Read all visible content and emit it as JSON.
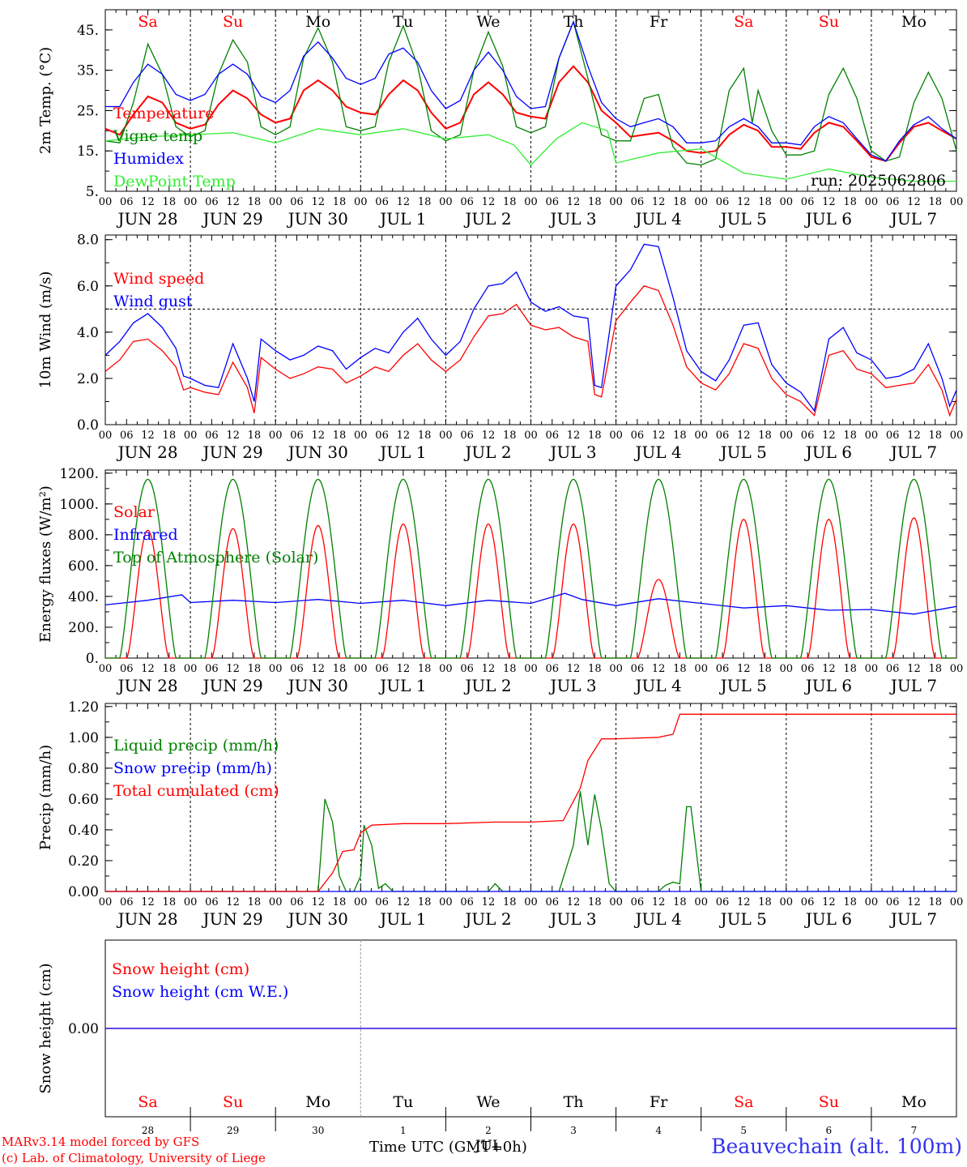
{
  "days_top": [
    "Sa",
    "Su",
    "Mo",
    "Tu",
    "We",
    "Th",
    "Fr",
    "Sa",
    "Su",
    "Mo"
  ],
  "weekend_days": [
    "Sa",
    "Su"
  ],
  "date_labels": [
    "JUN 28",
    "JUN 29",
    "JUN 30",
    "JUL  1",
    "JUL  2",
    "JUL  3",
    "JUL  4",
    "JUL  5",
    "JUL  6",
    "JUL  7"
  ],
  "hour_ticks": [
    "00",
    "06",
    "12",
    "18"
  ],
  "hour_tick_last": "00",
  "bottom_day_numbers": [
    "28",
    "29",
    "30",
    "1",
    "2",
    "3",
    "4",
    "5",
    "6",
    "7"
  ],
  "bottom_month_label": "JUL",
  "run_label": "run: 2025062806",
  "footer": {
    "model": "MARv3.14 model forced by GFS",
    "credit": "(c) Lab. of Climatology, University of Liege",
    "xlabel": "Time UTC (GMT+0h)",
    "station": "Beauvechain (alt. 100m)"
  },
  "colors": {
    "red": "#ff0000",
    "green": "#008000",
    "blue": "#0000ff",
    "lightgreen": "#33ee33",
    "grey": "#555555"
  },
  "chart_data": [
    {
      "type": "line",
      "ylabel": "2m Temp. (°C)",
      "yticks": [
        "5.",
        "15.",
        "25.",
        "35.",
        "45."
      ],
      "ylim": [
        5,
        50
      ],
      "x_unit": "day index (0 = JUN 28 00 UTC)",
      "xlim": [
        0,
        10
      ],
      "series": [
        {
          "name": "Temperature",
          "color": "red",
          "x": [
            0,
            0.17,
            0.33,
            0.5,
            0.67,
            0.83,
            1,
            1.17,
            1.33,
            1.5,
            1.67,
            1.83,
            2,
            2.17,
            2.33,
            2.5,
            2.67,
            2.83,
            3,
            3.17,
            3.33,
            3.5,
            3.67,
            3.83,
            4,
            4.17,
            4.33,
            4.5,
            4.67,
            4.83,
            5,
            5.17,
            5.33,
            5.5,
            5.67,
            5.83,
            6,
            6.17,
            6.33,
            6.5,
            6.67,
            6.83,
            7,
            7.17,
            7.33,
            7.5,
            7.67,
            7.83,
            8,
            8.17,
            8.33,
            8.5,
            8.67,
            8.83,
            9,
            9.17,
            9.33,
            9.5,
            9.67,
            9.83,
            10
          ],
          "y": [
            20.5,
            19,
            24,
            28.5,
            27,
            22,
            20.5,
            21.5,
            26.5,
            30,
            28,
            24,
            22,
            23,
            30,
            32.5,
            30,
            26,
            24.5,
            24,
            29,
            32.5,
            30,
            24.5,
            20.5,
            22,
            29,
            32,
            29,
            24.5,
            23.5,
            23,
            32,
            36,
            32,
            25,
            22,
            18.5,
            19,
            19.5,
            17.5,
            15,
            14.5,
            15,
            19,
            21.5,
            20,
            16,
            16,
            15.5,
            19.5,
            22,
            21,
            17.5,
            13.5,
            12.5,
            17,
            21,
            22,
            20,
            18
          ]
        },
        {
          "name": "Vigne temp",
          "color": "green",
          "x": [
            0,
            0.17,
            0.33,
            0.5,
            0.67,
            0.83,
            1,
            1.17,
            1.33,
            1.5,
            1.67,
            1.83,
            2,
            2.17,
            2.33,
            2.5,
            2.67,
            2.83,
            3,
            3.17,
            3.33,
            3.5,
            3.67,
            3.83,
            4,
            4.17,
            4.33,
            4.5,
            4.67,
            4.83,
            5,
            5.17,
            5.33,
            5.5,
            5.67,
            5.83,
            6,
            6.17,
            6.33,
            6.5,
            6.67,
            6.83,
            7,
            7.17,
            7.33,
            7.5,
            7.6,
            7.67,
            7.83,
            8,
            8.17,
            8.33,
            8.5,
            8.67,
            8.83,
            9,
            9.17,
            9.33,
            9.5,
            9.67,
            9.83,
            10
          ],
          "y": [
            17.5,
            17,
            27,
            41.5,
            34,
            21,
            18.5,
            20,
            34,
            42.5,
            37,
            21,
            19,
            21,
            38,
            45.5,
            37,
            21,
            20,
            21,
            37,
            46,
            36,
            20,
            17.5,
            19,
            35,
            44.5,
            36,
            21,
            19.5,
            21,
            38,
            47,
            33,
            19,
            17.5,
            17.5,
            28,
            29,
            16,
            12,
            11.5,
            13,
            30,
            35.5,
            22,
            30,
            20,
            14,
            14,
            15,
            29,
            35.5,
            28,
            15,
            12.5,
            13.5,
            27,
            34.5,
            28,
            15
          ]
        },
        {
          "name": "Humidex",
          "color": "blue",
          "x": [
            0,
            0.17,
            0.33,
            0.5,
            0.67,
            0.83,
            1,
            1.17,
            1.33,
            1.5,
            1.67,
            1.83,
            2,
            2.17,
            2.33,
            2.5,
            2.67,
            2.83,
            3,
            3.17,
            3.33,
            3.5,
            3.67,
            3.83,
            4,
            4.17,
            4.33,
            4.5,
            4.67,
            4.83,
            5,
            5.17,
            5.33,
            5.5,
            5.67,
            5.83,
            6,
            6.17,
            6.33,
            6.5,
            6.67,
            6.83,
            7,
            7.17,
            7.33,
            7.5,
            7.67,
            7.83,
            8,
            8.17,
            8.33,
            8.5,
            8.67,
            8.83,
            9,
            9.17,
            9.33,
            9.5,
            9.67,
            9.83,
            10
          ],
          "y": [
            26,
            26,
            32,
            36.5,
            34,
            29,
            27.5,
            29,
            34,
            36.5,
            34,
            28.5,
            27,
            30,
            38.5,
            42,
            38,
            33,
            31.5,
            33,
            39,
            40.5,
            37,
            30,
            25.5,
            27.5,
            35,
            39.5,
            35,
            28.5,
            25.5,
            26,
            38,
            47,
            36,
            27,
            23,
            21,
            22,
            23,
            21,
            17,
            17,
            17.5,
            21,
            23,
            21,
            17,
            17,
            16.5,
            21,
            23.5,
            22,
            18,
            14,
            12.5,
            17.5,
            21.5,
            23.5,
            20.5,
            18
          ]
        },
        {
          "name": "DewPoint Temp",
          "color": "lightgreen",
          "x": [
            0,
            0.5,
            1,
            1.5,
            2,
            2.5,
            3,
            3.5,
            4,
            4.5,
            4.8,
            5,
            5.3,
            5.6,
            5.9,
            6,
            6.5,
            7,
            7.5,
            8,
            8.5,
            9,
            9.5,
            10
          ],
          "y": [
            17.5,
            18.5,
            19,
            19.5,
            17,
            20.5,
            19,
            20.5,
            18,
            19,
            16.5,
            11.5,
            18,
            22,
            20,
            12,
            14.5,
            15.5,
            9.5,
            8,
            10.5,
            8.5,
            7.5,
            7.5
          ]
        }
      ]
    },
    {
      "type": "line",
      "ylabel": "10m Wind (m/s)",
      "yticks": [
        "0.0",
        "2.0",
        "4.0",
        "6.0",
        "8.0"
      ],
      "ylim": [
        0,
        8.2
      ],
      "reference_line": 5.0,
      "xlim": [
        0,
        10
      ],
      "series": [
        {
          "name": "Wind speed",
          "color": "red",
          "x": [
            0,
            0.17,
            0.33,
            0.5,
            0.67,
            0.83,
            0.92,
            1,
            1.17,
            1.33,
            1.5,
            1.67,
            1.75,
            1.83,
            2,
            2.17,
            2.33,
            2.5,
            2.67,
            2.83,
            3,
            3.17,
            3.33,
            3.5,
            3.67,
            3.83,
            4,
            4.17,
            4.33,
            4.5,
            4.67,
            4.83,
            5,
            5.17,
            5.33,
            5.5,
            5.67,
            5.75,
            5.83,
            6,
            6.17,
            6.33,
            6.5,
            6.67,
            6.83,
            7,
            7.17,
            7.33,
            7.5,
            7.67,
            7.83,
            8,
            8.17,
            8.33,
            8.5,
            8.67,
            8.83,
            9,
            9.17,
            9.33,
            9.5,
            9.67,
            9.83,
            9.92,
            10
          ],
          "y": [
            2.3,
            2.8,
            3.6,
            3.7,
            3.2,
            2.5,
            1.5,
            1.6,
            1.4,
            1.3,
            2.7,
            1.6,
            0.5,
            2.9,
            2.4,
            2.0,
            2.2,
            2.5,
            2.4,
            1.8,
            2.1,
            2.5,
            2.3,
            3.0,
            3.5,
            2.8,
            2.3,
            2.8,
            3.8,
            4.7,
            4.8,
            5.2,
            4.3,
            4.1,
            4.2,
            3.8,
            3.6,
            1.3,
            1.2,
            4.5,
            5.3,
            6.0,
            5.8,
            4.3,
            2.5,
            1.8,
            1.5,
            2.2,
            3.5,
            3.3,
            2.0,
            1.3,
            1.0,
            0.4,
            3.0,
            3.2,
            2.4,
            2.2,
            1.6,
            1.7,
            1.8,
            2.6,
            1.5,
            0.4,
            1.1
          ]
        },
        {
          "name": "Wind gust",
          "color": "blue",
          "x": [
            0,
            0.17,
            0.33,
            0.5,
            0.67,
            0.83,
            0.92,
            1,
            1.17,
            1.33,
            1.5,
            1.67,
            1.75,
            1.83,
            2,
            2.17,
            2.33,
            2.5,
            2.67,
            2.83,
            3,
            3.17,
            3.33,
            3.5,
            3.67,
            3.83,
            4,
            4.17,
            4.33,
            4.5,
            4.67,
            4.83,
            5,
            5.17,
            5.33,
            5.5,
            5.67,
            5.75,
            5.83,
            6,
            6.17,
            6.33,
            6.5,
            6.67,
            6.83,
            7,
            7.17,
            7.33,
            7.5,
            7.67,
            7.83,
            8,
            8.17,
            8.33,
            8.5,
            8.67,
            8.83,
            9,
            9.17,
            9.33,
            9.5,
            9.67,
            9.83,
            9.92,
            10
          ],
          "y": [
            3.0,
            3.6,
            4.4,
            4.8,
            4.2,
            3.3,
            2.1,
            2.0,
            1.7,
            1.6,
            3.5,
            2.0,
            1.0,
            3.7,
            3.2,
            2.8,
            3.0,
            3.4,
            3.2,
            2.4,
            2.9,
            3.3,
            3.1,
            4.0,
            4.6,
            3.7,
            3.0,
            3.6,
            5.0,
            6.0,
            6.1,
            6.6,
            5.3,
            4.9,
            5.1,
            4.7,
            4.6,
            1.7,
            1.6,
            6.0,
            6.7,
            7.8,
            7.7,
            5.5,
            3.2,
            2.3,
            1.9,
            2.8,
            4.3,
            4.4,
            2.6,
            1.8,
            1.4,
            0.6,
            3.7,
            4.2,
            3.1,
            2.8,
            2.0,
            2.1,
            2.4,
            3.5,
            2.0,
            0.8,
            1.5
          ]
        }
      ]
    },
    {
      "type": "line",
      "ylabel": "Energy fluxes (W/m²)",
      "yticks": [
        "0.",
        "200.",
        "400.",
        "600.",
        "800.",
        "1000.",
        "1200."
      ],
      "ylim": [
        0,
        1220
      ],
      "xlim": [
        0,
        10
      ],
      "series": [
        {
          "name": "Solar",
          "color": "red",
          "diurnal_peaks": [
            830,
            840,
            860,
            870,
            870,
            870,
            510,
            900,
            900,
            910
          ]
        },
        {
          "name": "Infrared",
          "color": "blue",
          "x": [
            0,
            0.5,
            0.9,
            1,
            1.5,
            2,
            2.5,
            3,
            3.5,
            4,
            4.5,
            5,
            5.4,
            5.6,
            6,
            6.5,
            7,
            7.5,
            8,
            8.5,
            9,
            9.5,
            10
          ],
          "y": [
            345,
            375,
            410,
            360,
            375,
            360,
            380,
            355,
            375,
            340,
            375,
            355,
            420,
            380,
            340,
            385,
            355,
            325,
            340,
            310,
            315,
            285,
            335
          ]
        },
        {
          "name": "Top of Atmosphere (Solar)",
          "color": "green",
          "diurnal_peaks": [
            1160,
            1160,
            1160,
            1160,
            1160,
            1160,
            1160,
            1160,
            1160,
            1160
          ]
        }
      ]
    },
    {
      "type": "line",
      "ylabel": "Precip (mm/h)",
      "yticks": [
        "0.00",
        "0.20",
        "0.40",
        "0.60",
        "0.80",
        "1.00",
        "1.20"
      ],
      "ylim": [
        0,
        1.22
      ],
      "xlim": [
        0,
        10
      ],
      "series": [
        {
          "name": "Liquid precip (mm/h)",
          "color": "green",
          "x": [
            0,
            2.5,
            2.58,
            2.67,
            2.75,
            2.83,
            2.92,
            3,
            3.04,
            3.13,
            3.21,
            3.29,
            3.38,
            3.5,
            4.5,
            4.58,
            4.67,
            5.33,
            5.5,
            5.58,
            5.67,
            5.75,
            5.83,
            5.92,
            6,
            6.5,
            6.58,
            6.67,
            6.75,
            6.83,
            6.88,
            7,
            10
          ],
          "y": [
            0,
            0,
            0.6,
            0.45,
            0.1,
            0,
            0,
            0.1,
            0.43,
            0.3,
            0.02,
            0.05,
            0,
            0,
            0,
            0.05,
            0,
            0,
            0.3,
            0.65,
            0.3,
            0.63,
            0.4,
            0.05,
            0,
            0,
            0.04,
            0.06,
            0.05,
            0.55,
            0.55,
            0,
            0
          ]
        },
        {
          "name": "Snow precip (mm/h)",
          "color": "blue",
          "x": [
            0,
            10
          ],
          "y": [
            0,
            0
          ]
        },
        {
          "name": "Total cumulated (cm)",
          "color": "red",
          "x": [
            0,
            2.5,
            2.67,
            2.79,
            2.92,
            3,
            3.13,
            3.5,
            4,
            4.58,
            5,
            5.38,
            5.58,
            5.67,
            5.83,
            6,
            6.5,
            6.67,
            6.75,
            7,
            10
          ],
          "y": [
            0,
            0,
            0.12,
            0.26,
            0.27,
            0.38,
            0.43,
            0.44,
            0.44,
            0.45,
            0.45,
            0.46,
            0.67,
            0.85,
            0.99,
            0.99,
            1.0,
            1.02,
            1.15,
            1.15,
            1.15
          ]
        }
      ]
    },
    {
      "type": "line",
      "ylabel": "Snow height (cm)",
      "yticks": [
        "0.00"
      ],
      "ylim": [
        -1,
        1
      ],
      "xlim": [
        0,
        10
      ],
      "series": [
        {
          "name": "Snow height (cm)",
          "color": "red",
          "x": [
            0,
            10
          ],
          "y": [
            0,
            0
          ]
        },
        {
          "name": "Snow height (cm W.E.)",
          "color": "blue",
          "x": [
            0,
            10
          ],
          "y": [
            0,
            0
          ]
        }
      ]
    }
  ]
}
